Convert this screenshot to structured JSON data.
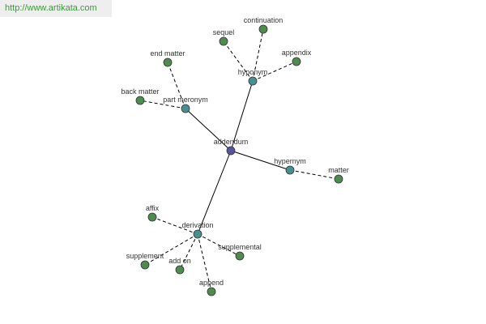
{
  "watermark": "http://www.artikata.com",
  "nodes": [
    {
      "label": "addendum"
    },
    {
      "label": "hyponym"
    },
    {
      "label": "sequel"
    },
    {
      "label": "continuation"
    },
    {
      "label": "appendix"
    },
    {
      "label": "part meronym"
    },
    {
      "label": "end matter"
    },
    {
      "label": "back matter"
    },
    {
      "label": "hypernym"
    },
    {
      "label": "matter"
    },
    {
      "label": "derivation"
    },
    {
      "label": "affix"
    },
    {
      "label": "supplement"
    },
    {
      "label": "add on"
    },
    {
      "label": "append"
    },
    {
      "label": "supplemental"
    }
  ]
}
